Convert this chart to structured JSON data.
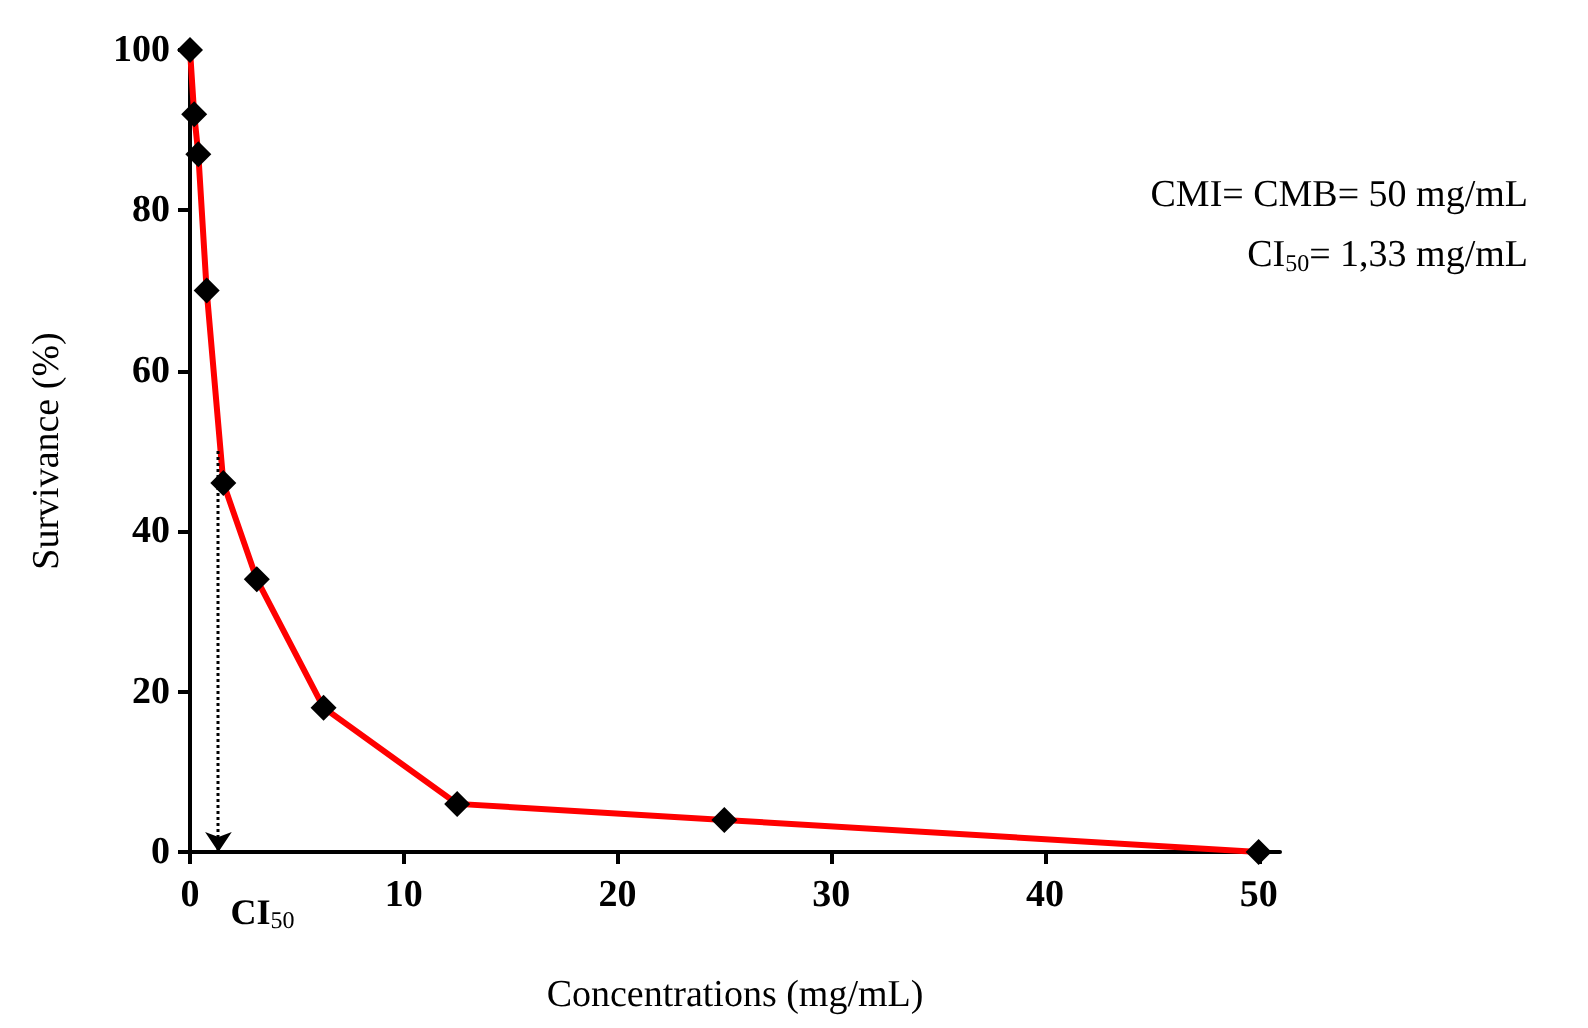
{
  "chart_data": {
    "type": "line",
    "xlabel": "Concentrations (mg/mL)",
    "ylabel": "Survivance (%)",
    "x": [
      0,
      0.195,
      0.39,
      0.78,
      1.56,
      3.125,
      6.25,
      12.5,
      25,
      50
    ],
    "series": [
      {
        "color": "#ff0000",
        "values": [
          100,
          92,
          87,
          70,
          46,
          34,
          18,
          6,
          4,
          0
        ]
      }
    ],
    "xlim": [
      0,
      51
    ],
    "xticks": [
      0,
      10,
      20,
      30,
      40,
      50
    ],
    "ylim": [
      0,
      100
    ],
    "yticks": [
      0,
      20,
      40,
      60,
      80,
      100
    ],
    "marker": "diamond",
    "line_style": "solid",
    "grid": false,
    "annotations": [
      "CMI= CMB= 50 mg/mL",
      "CI$_{50}$= 1,33 mg/mL",
      {
        "text": "CI$_{50}$",
        "x": 1.33,
        "y": 50
      }
    ]
  }
}
